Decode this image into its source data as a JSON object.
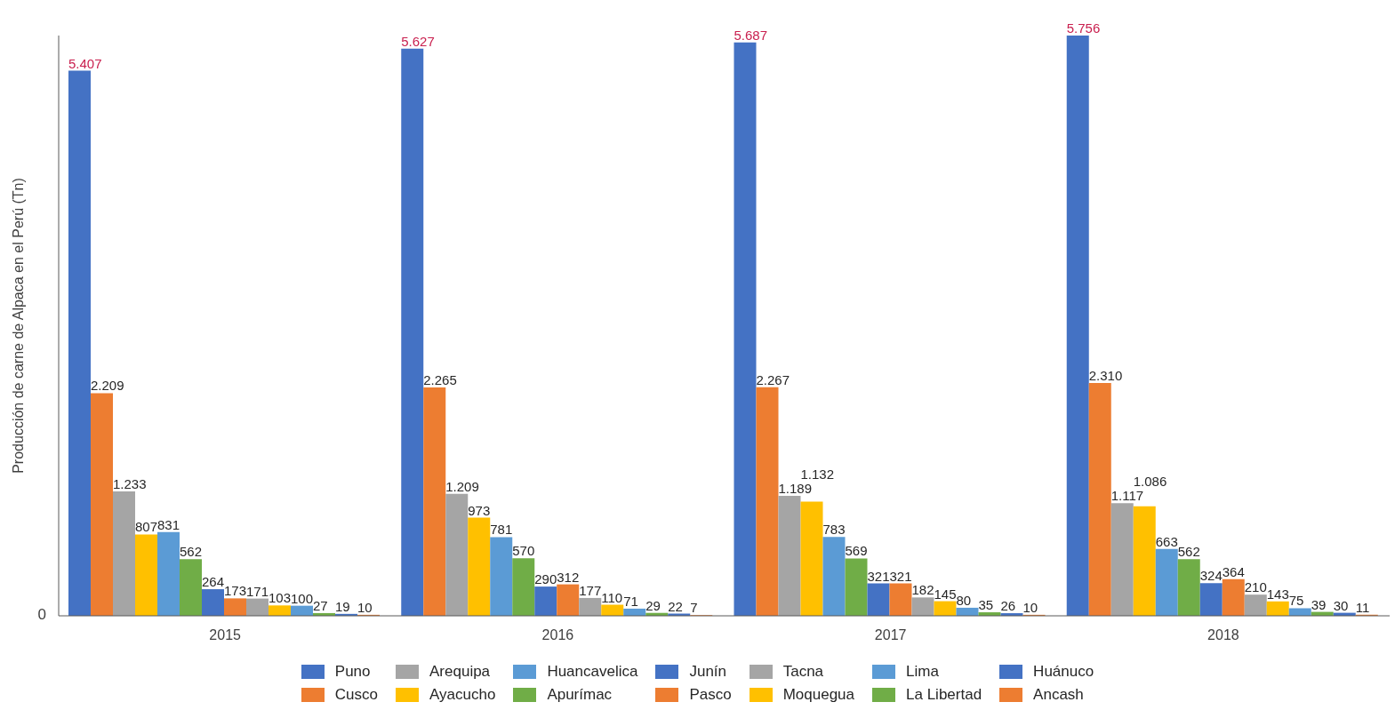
{
  "chart_data": {
    "type": "bar",
    "ylabel": "Producción de carne de Alpaca en el Perú (Tn)",
    "categories": [
      "2015",
      "2016",
      "2017",
      "2018"
    ],
    "series": [
      {
        "name": "Puno",
        "color": "#4472c4",
        "values": [
          5407,
          5627,
          5687,
          5756
        ],
        "value_labels": [
          "5.407",
          "5.627",
          "5.687",
          "5.756"
        ]
      },
      {
        "name": "Cusco",
        "color": "#ed7d31",
        "values": [
          2209,
          2265,
          2267,
          2310
        ],
        "value_labels": [
          "2.209",
          "2.265",
          "2.267",
          "2.310"
        ]
      },
      {
        "name": "Arequipa",
        "color": "#a5a5a5",
        "values": [
          1233,
          1209,
          1189,
          1117
        ],
        "value_labels": [
          "1.233",
          "1.209",
          "1.189",
          "1.117"
        ]
      },
      {
        "name": "Ayacucho",
        "color": "#ffc000",
        "values": [
          807,
          973,
          1132,
          1086
        ],
        "value_labels": [
          "807",
          "973",
          "1.132",
          "1.086"
        ]
      },
      {
        "name": "Huancavelica",
        "color": "#5b9bd5",
        "values": [
          831,
          781,
          783,
          663
        ],
        "value_labels": [
          "831",
          "781",
          "783",
          "663"
        ]
      },
      {
        "name": "Apurímac",
        "color": "#70ad47",
        "values": [
          562,
          570,
          569,
          562
        ],
        "value_labels": [
          "562",
          "570",
          "569",
          "562"
        ]
      },
      {
        "name": "Junín",
        "color": "#4472c4",
        "values": [
          264,
          290,
          321,
          324
        ],
        "value_labels": [
          "264",
          "290",
          "321",
          "324"
        ]
      },
      {
        "name": "Pasco",
        "color": "#ed7d31",
        "values": [
          173,
          312,
          321,
          364
        ],
        "value_labels": [
          "173",
          "312",
          "321",
          "364"
        ]
      },
      {
        "name": "Tacna",
        "color": "#a5a5a5",
        "values": [
          171,
          177,
          182,
          210
        ],
        "value_labels": [
          "171",
          "177",
          "182",
          "210"
        ]
      },
      {
        "name": "Moquegua",
        "color": "#ffc000",
        "values": [
          103,
          110,
          145,
          143
        ],
        "value_labels": [
          "103",
          "110",
          "145",
          "143"
        ]
      },
      {
        "name": "Lima",
        "color": "#5b9bd5",
        "values": [
          100,
          71,
          80,
          75
        ],
        "value_labels": [
          "100",
          "71",
          "80",
          "75"
        ]
      },
      {
        "name": "La Libertad",
        "color": "#70ad47",
        "values": [
          27,
          29,
          35,
          39
        ],
        "value_labels": [
          "27",
          "29",
          "35",
          "39"
        ]
      },
      {
        "name": "Huánuco",
        "color": "#4472c4",
        "values": [
          19,
          22,
          26,
          30
        ],
        "value_labels": [
          "19",
          "22",
          "26",
          "30"
        ]
      },
      {
        "name": "Ancash",
        "color": "#ed7d31",
        "values": [
          10,
          7,
          10,
          11
        ],
        "value_labels": [
          "10",
          "7",
          "10",
          "11"
        ]
      }
    ],
    "annotations": [
      "0"
    ],
    "legend": "bottom"
  }
}
